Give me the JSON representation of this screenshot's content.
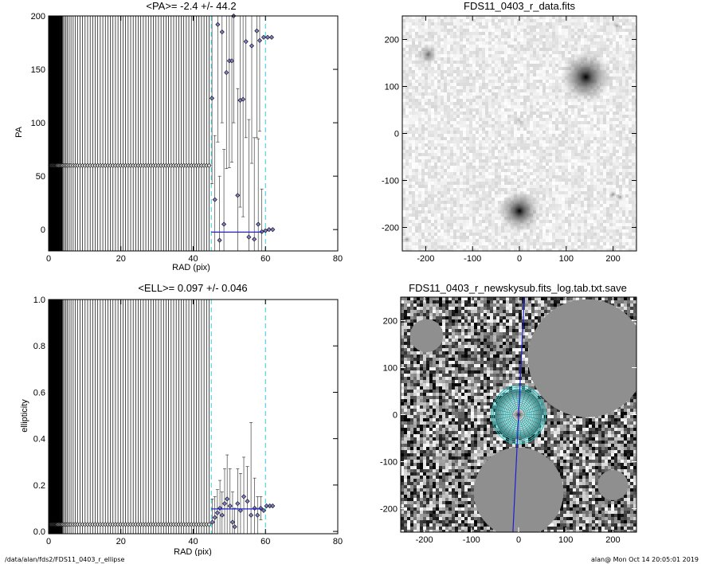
{
  "footer": {
    "path": "/data/alan/fds2/FDS11_0403_r_ellipse",
    "user_timestamp": "alan@  Mon Oct 14 20:05:01 2019"
  },
  "colors": {
    "fit_line": "#1f1fd0",
    "boundary_line": "#33c8d8",
    "point_fill": "#7d7dc8",
    "contour": "#1fb8b8",
    "background": "#ffffff"
  },
  "chart_data": [
    {
      "type": "scatter",
      "title": "<PA>=  -2.4 +/-  44.2",
      "xlabel": "RAD (pix)",
      "ylabel": "PA",
      "xlim": [
        0,
        80
      ],
      "ylim": [
        -20,
        200
      ],
      "xticks": [
        "0",
        "20",
        "40",
        "60",
        "80"
      ],
      "yticks": [
        "0",
        "50",
        "100",
        "150",
        "200"
      ],
      "inner_lines_x": [
        0.5,
        0.7,
        0.9,
        1.1,
        1.3,
        1.5,
        1.7,
        1.9,
        2.1,
        2.3,
        2.5,
        2.8,
        3.1,
        3.4,
        3.7,
        4.0,
        4.4,
        4.8,
        5.2,
        5.7,
        6.2,
        6.8,
        7.4,
        8.0,
        8.7,
        9.4,
        10.1,
        10.8,
        11.5,
        12.2,
        12.9,
        13.6,
        14.3,
        15.0,
        15.7,
        16.4,
        17.1,
        17.8,
        18.5,
        19.2,
        19.9,
        20.6,
        21.3,
        22.0,
        22.7,
        23.4,
        24.1,
        24.8,
        25.5,
        26.2,
        26.9,
        27.6,
        28.3,
        29.0,
        29.7,
        30.4,
        31.1,
        31.8,
        32.5,
        33.2,
        33.9,
        34.6,
        35.3,
        36.0,
        36.7,
        37.4,
        38.1,
        38.8,
        39.5,
        40.2,
        40.9,
        41.6,
        42.3,
        43.0,
        43.7,
        44.4
      ],
      "inner_y": 60,
      "points": [
        {
          "x": 45.2,
          "y": 123,
          "err": 80
        },
        {
          "x": 46.0,
          "y": 28,
          "err": 60
        },
        {
          "x": 46.8,
          "y": 192,
          "err": 110
        },
        {
          "x": 47.3,
          "y": -10,
          "err": 60
        },
        {
          "x": 48.0,
          "y": 185,
          "err": 85
        },
        {
          "x": 48.5,
          "y": 5,
          "err": 70
        },
        {
          "x": 49.2,
          "y": 147,
          "err": 90
        },
        {
          "x": 50.0,
          "y": 158,
          "err": 100
        },
        {
          "x": 50.7,
          "y": 158,
          "err": 95
        },
        {
          "x": 51.2,
          "y": 200,
          "err": 100
        },
        {
          "x": 52.3,
          "y": 32,
          "err": 100
        },
        {
          "x": 53.0,
          "y": 121,
          "err": 100
        },
        {
          "x": 53.8,
          "y": 122,
          "err": 110
        },
        {
          "x": 54.6,
          "y": 176,
          "err": 90
        },
        {
          "x": 55.4,
          "y": -7,
          "err": 110
        },
        {
          "x": 56.2,
          "y": 172,
          "err": 110
        },
        {
          "x": 56.9,
          "y": -9,
          "err": 95
        },
        {
          "x": 57.6,
          "y": 186,
          "err": 100
        },
        {
          "x": 58.0,
          "y": 5,
          "err": 80
        },
        {
          "x": 58.4,
          "y": 177,
          "err": 85
        },
        {
          "x": 59.0,
          "y": -2,
          "err": 40
        },
        {
          "x": 59.5,
          "y": 180,
          "err": 0
        },
        {
          "x": 60.0,
          "y": -1,
          "err": 0
        },
        {
          "x": 60.6,
          "y": 180,
          "err": 0
        },
        {
          "x": 61.0,
          "y": 0,
          "err": 0
        },
        {
          "x": 61.7,
          "y": 180,
          "err": 0
        },
        {
          "x": 62.0,
          "y": 0,
          "err": 0
        }
      ],
      "fit_line": {
        "x": [
          45,
          59
        ],
        "y": -2.4
      },
      "boundaries_x": [
        45,
        60
      ]
    },
    {
      "type": "scatter",
      "title": "<ELL>= 0.097 +/-  0.046",
      "xlabel": "RAD (pix)",
      "ylabel": "ellipticity",
      "xlim": [
        0,
        80
      ],
      "ylim": [
        -0.01,
        1.0
      ],
      "xticks": [
        "0",
        "20",
        "40",
        "60",
        "80"
      ],
      "yticks": [
        "0.0",
        "0.2",
        "0.4",
        "0.6",
        "0.8",
        "1.0"
      ],
      "inner_lines_x": [
        0.5,
        0.7,
        0.9,
        1.1,
        1.3,
        1.5,
        1.7,
        1.9,
        2.1,
        2.3,
        2.5,
        2.8,
        3.1,
        3.4,
        3.7,
        4.0,
        4.4,
        4.8,
        5.2,
        5.7,
        6.2,
        6.8,
        7.4,
        8.0,
        8.7,
        9.4,
        10.1,
        10.8,
        11.5,
        12.2,
        12.9,
        13.6,
        14.3,
        15.0,
        15.7,
        16.4,
        17.1,
        17.8,
        18.5,
        19.2,
        19.9,
        20.6,
        21.3,
        22.0,
        22.7,
        23.4,
        24.1,
        24.8,
        25.5,
        26.2,
        26.9,
        27.6,
        28.3,
        29.0,
        29.7,
        30.4,
        31.1,
        31.8,
        32.5,
        33.2,
        33.9,
        34.6,
        35.3,
        36.0,
        36.7,
        37.4,
        38.1,
        38.8,
        39.5,
        40.2,
        40.9,
        41.6,
        42.3,
        43.0,
        43.7,
        44.4
      ],
      "inner_y": 0.03,
      "points": [
        {
          "x": 45.3,
          "y": 0.04,
          "err": 0.1
        },
        {
          "x": 46.0,
          "y": 0.06,
          "err": 0.09
        },
        {
          "x": 46.7,
          "y": 0.08,
          "err": 0.1
        },
        {
          "x": 47.4,
          "y": 0.1,
          "err": 0.12
        },
        {
          "x": 48.0,
          "y": 0.07,
          "err": 0.1
        },
        {
          "x": 48.7,
          "y": 0.12,
          "err": 0.15
        },
        {
          "x": 49.4,
          "y": 0.14,
          "err": 0.19
        },
        {
          "x": 50.2,
          "y": 0.11,
          "err": 0.16
        },
        {
          "x": 50.9,
          "y": 0.04,
          "err": 0.13
        },
        {
          "x": 51.5,
          "y": 0.02,
          "err": 0.08
        },
        {
          "x": 52.3,
          "y": 0.12,
          "err": 0.15
        },
        {
          "x": 53.1,
          "y": 0.09,
          "err": 0.16
        },
        {
          "x": 54.0,
          "y": 0.15,
          "err": 0.17
        },
        {
          "x": 55.0,
          "y": 0.13,
          "err": 0.15
        },
        {
          "x": 56.0,
          "y": 0.07,
          "err": 0.4
        },
        {
          "x": 57.0,
          "y": 0.1,
          "err": 0.13
        },
        {
          "x": 57.8,
          "y": 0.07,
          "err": 0.08
        },
        {
          "x": 58.7,
          "y": 0.1,
          "err": 0.05
        },
        {
          "x": 59.5,
          "y": 0.09,
          "err": 0.0
        },
        {
          "x": 60.3,
          "y": 0.11,
          "err": 0.0
        },
        {
          "x": 61.2,
          "y": 0.11,
          "err": 0.0
        },
        {
          "x": 62.0,
          "y": 0.11,
          "err": 0.0
        }
      ],
      "fit_line": {
        "x": [
          45,
          59
        ],
        "y": 0.097
      },
      "boundaries_x": [
        45,
        60
      ]
    },
    {
      "type": "heatmap",
      "title": "FDS11_0403_r_data.fits",
      "xlim": [
        -250,
        250
      ],
      "ylim": [
        -250,
        250
      ],
      "xticks": [
        "-200",
        "-100",
        "0",
        "100",
        "200"
      ],
      "yticks": [
        "-200",
        "-100",
        "0",
        "100",
        "200"
      ],
      "sources": [
        {
          "x": 0,
          "y": -165,
          "strength": 1.0,
          "size": 28
        },
        {
          "x": 142,
          "y": 120,
          "strength": 1.0,
          "size": 34
        },
        {
          "x": -195,
          "y": 168,
          "strength": 0.55,
          "size": 14
        },
        {
          "x": 0,
          "y": 25,
          "strength": 0.2,
          "size": 10
        },
        {
          "x": 208,
          "y": 230,
          "strength": 0.35,
          "size": 6
        },
        {
          "x": 200,
          "y": -130,
          "strength": 0.45,
          "size": 5
        },
        {
          "x": 215,
          "y": -135,
          "strength": 0.45,
          "size": 5
        },
        {
          "x": -240,
          "y": -225,
          "strength": 0.4,
          "size": 5
        }
      ]
    },
    {
      "type": "heatmap",
      "title": "FDS11_0403_r_newskysub.fits_log.tab.txt.save",
      "xlim": [
        -250,
        250
      ],
      "ylim": [
        -250,
        250
      ],
      "xticks": [
        "-200",
        "-100",
        "0",
        "100",
        "200"
      ],
      "yticks": [
        "-200",
        "-100",
        "0",
        "100",
        "200"
      ],
      "masks": [
        {
          "x": 145,
          "y": 120,
          "r": 125
        },
        {
          "x": 0,
          "y": -165,
          "r": 95
        },
        {
          "x": -195,
          "y": 168,
          "r": 35
        },
        {
          "x": 200,
          "y": -150,
          "r": 32
        },
        {
          "x": -20,
          "y": 30,
          "r": 12
        }
      ],
      "contours_ry": [
        14,
        18,
        22,
        26,
        30,
        34,
        38,
        42,
        46,
        50,
        54,
        58,
        62
      ]
    }
  ]
}
